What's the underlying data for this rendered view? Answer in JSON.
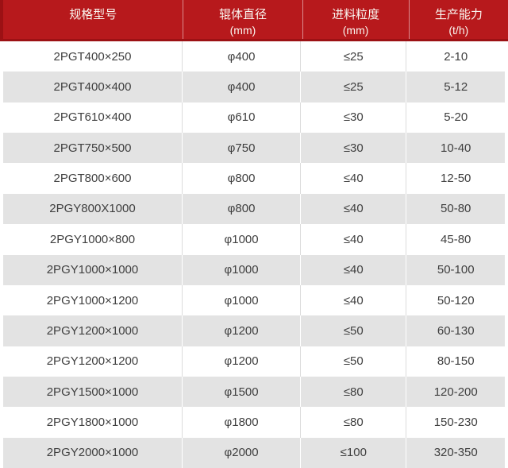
{
  "chart_data": {
    "type": "table",
    "title": "",
    "columns": [
      {
        "label": "规格型号",
        "unit": ""
      },
      {
        "label": "辊体直径",
        "unit": "(mm)"
      },
      {
        "label": "进料粒度",
        "unit": "(mm)"
      },
      {
        "label": "生产能力",
        "unit": "(t/h)"
      }
    ],
    "rows": [
      [
        "2PGT400×250",
        "φ400",
        "≤25",
        "2-10"
      ],
      [
        "2PGT400×400",
        "φ400",
        "≤25",
        "5-12"
      ],
      [
        "2PGT610×400",
        "φ610",
        "≤30",
        "5-20"
      ],
      [
        "2PGT750×500",
        "φ750",
        "≤30",
        "10-40"
      ],
      [
        "2PGT800×600",
        "φ800",
        "≤40",
        "12-50"
      ],
      [
        "2PGY800X1000",
        "φ800",
        "≤40",
        "50-80"
      ],
      [
        "2PGY1000×800",
        "φ1000",
        "≤40",
        "45-80"
      ],
      [
        "2PGY1000×1000",
        "φ1000",
        "≤40",
        "50-100"
      ],
      [
        "2PGY1000×1200",
        "φ1000",
        "≤40",
        "50-120"
      ],
      [
        "2PGY1200×1000",
        "φ1200",
        "≤50",
        "60-130"
      ],
      [
        "2PGY1200×1200",
        "φ1200",
        "≤50",
        "80-150"
      ],
      [
        "2PGY1500×1000",
        "φ1500",
        "≤80",
        "120-200"
      ],
      [
        "2PGY1800×1000",
        "φ1800",
        "≤80",
        "150-230"
      ],
      [
        "2PGY2000×1000",
        "φ2000",
        "≤100",
        "320-350"
      ]
    ]
  },
  "colors": {
    "header_bg": "#b7191c",
    "header_accent": "#9c1114",
    "header_text": "#faf6f0",
    "row_bg": "#ffffff",
    "row_alt_bg": "#e3e3e3",
    "cell_text": "#3f3f3f",
    "divider": "#dcdcdc"
  }
}
